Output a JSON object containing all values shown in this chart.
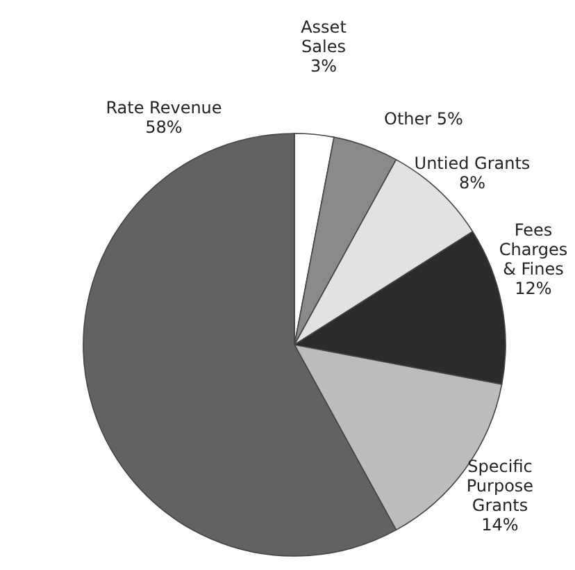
{
  "chart_data": {
    "type": "pie",
    "categories": [
      "Asset Sales",
      "Other",
      "Untied Grants",
      "Fees Charges & Fines",
      "Specific Purpose Grants",
      "Rate Revenue"
    ],
    "values": [
      3,
      5,
      8,
      12,
      14,
      58
    ],
    "colors": [
      "#ffffff",
      "#8a8a8a",
      "#e2e2e2",
      "#2b2b2b",
      "#bcbcbc",
      "#626262"
    ],
    "value_labels": [
      "3%",
      "5%",
      "8%",
      "12%",
      "14%",
      "58%"
    ]
  }
}
